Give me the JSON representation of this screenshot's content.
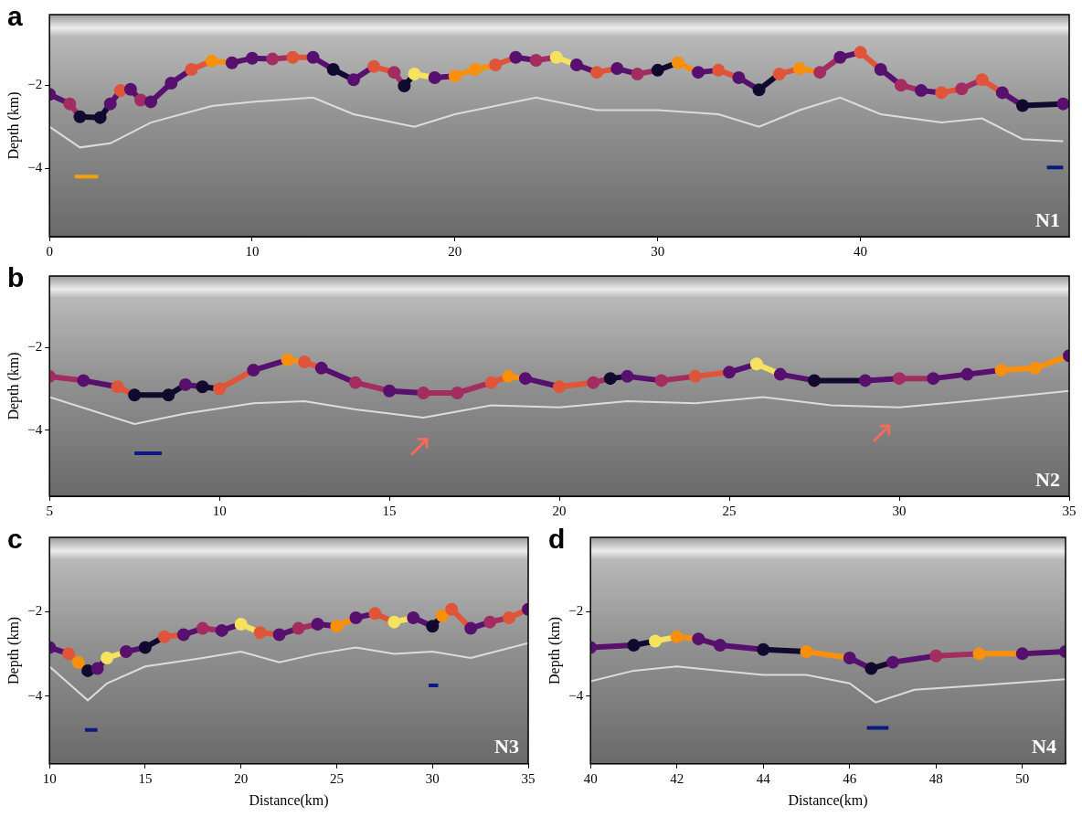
{
  "chart_data": [
    {
      "type": "line",
      "panel_label": "a",
      "title": "N1",
      "y_label": "Depth (km)",
      "xlim": [
        0,
        50.3
      ],
      "xticks": [
        0,
        10,
        20,
        30,
        40
      ],
      "ylim": [
        -5.65,
        -0.3
      ],
      "yticks": [
        {
          "value": -4,
          "label": "−4"
        },
        {
          "value": -2,
          "label": "−2"
        }
      ],
      "grid": false,
      "series": [
        {
          "type": "line",
          "marker": "circle",
          "line_style": "solid",
          "x": [
            0,
            1,
            1.5,
            2.5,
            3,
            3.5,
            4,
            4.5,
            5,
            6,
            7,
            8,
            9,
            10,
            11,
            12,
            13,
            14,
            15,
            16,
            17,
            17.5,
            18,
            19,
            20,
            21,
            22,
            23,
            24,
            25,
            26,
            27,
            28,
            29,
            30,
            31,
            32,
            33,
            34,
            35,
            36,
            37,
            38,
            39,
            40,
            41,
            42,
            43,
            44,
            45,
            46,
            47,
            48,
            50
          ],
          "values": [
            -2.22,
            -2.45,
            -2.76,
            -2.78,
            -2.45,
            -2.13,
            -2.1,
            -2.36,
            -2.4,
            -1.95,
            -1.62,
            -1.42,
            -1.46,
            -1.35,
            -1.37,
            -1.33,
            -1.33,
            -1.62,
            -1.87,
            -1.55,
            -1.69,
            -2.02,
            -1.73,
            -1.82,
            -1.78,
            -1.62,
            -1.51,
            -1.33,
            -1.4,
            -1.33,
            -1.51,
            -1.69,
            -1.6,
            -1.73,
            -1.64,
            -1.46,
            -1.69,
            -1.64,
            -1.82,
            -2.11,
            -1.73,
            -1.6,
            -1.69,
            -1.33,
            -1.21,
            -1.62,
            -2.0,
            -2.13,
            -2.18,
            -2.09,
            -1.87,
            -2.18,
            -2.49,
            -2.45
          ],
          "colors": [
            "#57106e",
            "#a32c61",
            "#120a2e",
            "#120a2e",
            "#57106e",
            "#e0543a",
            "#57106e",
            "#a32c61",
            "#57106e",
            "#57106e",
            "#e0543a",
            "#f8900c",
            "#57106e",
            "#57106e",
            "#a32c61",
            "#e0543a",
            "#57106e",
            "#120a2e",
            "#57106e",
            "#e0543a",
            "#a32c61",
            "#120a2e",
            "#f5e25e",
            "#57106e",
            "#f8900c",
            "#f8900c",
            "#e0543a",
            "#57106e",
            "#a32c61",
            "#f5e25e",
            "#57106e",
            "#e0543a",
            "#57106e",
            "#a32c61",
            "#120a2e",
            "#f8900c",
            "#57106e",
            "#e0543a",
            "#57106e",
            "#120a2e",
            "#e0543a",
            "#f8900c",
            "#a32c61",
            "#57106e",
            "#e0543a",
            "#57106e",
            "#a32c61",
            "#57106e",
            "#e0543a",
            "#a32c61",
            "#e0543a",
            "#57106e",
            "#120a2e",
            "#57106e"
          ]
        },
        {
          "type": "line",
          "marker": "none",
          "line_style": "solid",
          "color": "#dcdcdc",
          "x": [
            0,
            1.5,
            3,
            5,
            8,
            10,
            13,
            15,
            18,
            20,
            24,
            27,
            30,
            33,
            35,
            37,
            39,
            41,
            44,
            46,
            48,
            50
          ],
          "values": [
            -3.0,
            -3.5,
            -3.4,
            -2.9,
            -2.5,
            -2.4,
            -2.3,
            -2.7,
            -3.0,
            -2.7,
            -2.3,
            -2.6,
            -2.6,
            -2.7,
            -3.0,
            -2.6,
            -2.3,
            -2.7,
            -2.9,
            -2.8,
            -3.3,
            -3.35
          ]
        }
      ],
      "segments": [
        {
          "x": [
            1.25,
            2.4
          ],
          "y": -4.2,
          "color": "#f8a00a"
        },
        {
          "x": [
            49.2,
            50.0
          ],
          "y": -3.98,
          "color": "#0b1a80"
        }
      ],
      "arrows": []
    },
    {
      "type": "line",
      "panel_label": "b",
      "title": "N2",
      "y_label": "Depth (km)",
      "xlim": [
        5,
        35
      ],
      "xticks": [
        5,
        10,
        15,
        20,
        25,
        30,
        35
      ],
      "ylim": [
        -5.6,
        -0.27
      ],
      "yticks": [
        {
          "value": -4,
          "label": "−4"
        },
        {
          "value": -2,
          "label": "−2"
        }
      ],
      "grid": false,
      "series": [
        {
          "type": "line",
          "marker": "circle",
          "line_style": "solid",
          "x": [
            5,
            6,
            7,
            7.5,
            8.5,
            9,
            9.5,
            10,
            11,
            12,
            12.5,
            13,
            14,
            15,
            16,
            17,
            18,
            18.5,
            19,
            20,
            21,
            21.5,
            22,
            23,
            24,
            25,
            25.8,
            26.5,
            27.5,
            29,
            30,
            31,
            32,
            33,
            34,
            35
          ],
          "values": [
            -2.7,
            -2.8,
            -2.95,
            -3.15,
            -3.15,
            -2.9,
            -2.95,
            -3.0,
            -2.55,
            -2.3,
            -2.35,
            -2.5,
            -2.85,
            -3.05,
            -3.1,
            -3.1,
            -2.85,
            -2.7,
            -2.75,
            -2.95,
            -2.85,
            -2.75,
            -2.7,
            -2.8,
            -2.7,
            -2.6,
            -2.4,
            -2.65,
            -2.8,
            -2.8,
            -2.75,
            -2.75,
            -2.65,
            -2.55,
            -2.5,
            -2.2
          ],
          "colors": [
            "#a32c61",
            "#57106e",
            "#e0543a",
            "#120a2e",
            "#120a2e",
            "#57106e",
            "#120a2e",
            "#e0543a",
            "#57106e",
            "#f8900c",
            "#e0543a",
            "#57106e",
            "#a32c61",
            "#57106e",
            "#a32c61",
            "#a32c61",
            "#e0543a",
            "#f8900c",
            "#57106e",
            "#e0543a",
            "#a32c61",
            "#120a2e",
            "#57106e",
            "#a32c61",
            "#e0543a",
            "#57106e",
            "#f5e25e",
            "#57106e",
            "#120a2e",
            "#57106e",
            "#a32c61",
            "#57106e",
            "#57106e",
            "#f8900c",
            "#f8900c",
            "#57106e"
          ]
        },
        {
          "type": "line",
          "marker": "none",
          "line_style": "solid",
          "color": "#dcdcdc",
          "x": [
            5,
            7.5,
            9,
            11,
            12.5,
            14,
            16,
            18,
            20,
            22,
            24,
            26,
            28,
            30,
            32,
            35
          ],
          "values": [
            -3.2,
            -3.85,
            -3.6,
            -3.35,
            -3.3,
            -3.5,
            -3.7,
            -3.4,
            -3.45,
            -3.3,
            -3.35,
            -3.2,
            -3.4,
            -3.45,
            -3.3,
            -3.05
          ]
        }
      ],
      "segments": [
        {
          "x": [
            7.5,
            8.3
          ],
          "y": -4.56,
          "color": "#0b1a80"
        }
      ],
      "arrows": [
        {
          "x": 16.1,
          "y": -4.22,
          "color": "#f26b5b"
        },
        {
          "x": 29.7,
          "y": -3.9,
          "color": "#f26b5b"
        }
      ]
    },
    {
      "type": "line",
      "panel_label": "c",
      "title": "N3",
      "y_label": "Depth (km)",
      "x_label": "Distance(km)",
      "xlim": [
        10,
        35
      ],
      "xticks": [
        10,
        15,
        20,
        25,
        30,
        35
      ],
      "ylim": [
        -5.6,
        -0.25
      ],
      "yticks": [
        {
          "value": -4,
          "label": "−4"
        },
        {
          "value": -2,
          "label": "−2"
        }
      ],
      "grid": false,
      "series": [
        {
          "type": "line",
          "marker": "circle",
          "line_style": "solid",
          "x": [
            10,
            11,
            11.5,
            12,
            12.5,
            13,
            14,
            15,
            16,
            17,
            18,
            19,
            20,
            21,
            22,
            23,
            24,
            25,
            26,
            27,
            28,
            29,
            30,
            30.5,
            31,
            32,
            33,
            34,
            35
          ],
          "values": [
            -2.85,
            -3.0,
            -3.2,
            -3.4,
            -3.35,
            -3.1,
            -2.95,
            -2.85,
            -2.6,
            -2.55,
            -2.4,
            -2.45,
            -2.3,
            -2.5,
            -2.55,
            -2.4,
            -2.3,
            -2.35,
            -2.15,
            -2.05,
            -2.25,
            -2.15,
            -2.35,
            -2.1,
            -1.95,
            -2.4,
            -2.25,
            -2.15,
            -1.95
          ],
          "colors": [
            "#57106e",
            "#e0543a",
            "#f8900c",
            "#120a2e",
            "#57106e",
            "#f5e25e",
            "#57106e",
            "#120a2e",
            "#e0543a",
            "#57106e",
            "#a32c61",
            "#57106e",
            "#f5e25e",
            "#e0543a",
            "#57106e",
            "#a32c61",
            "#57106e",
            "#f8900c",
            "#57106e",
            "#e0543a",
            "#f5e25e",
            "#57106e",
            "#120a2e",
            "#f8900c",
            "#e0543a",
            "#57106e",
            "#a32c61",
            "#e0543a",
            "#57106e"
          ]
        },
        {
          "type": "line",
          "marker": "none",
          "line_style": "solid",
          "color": "#dcdcdc",
          "x": [
            10,
            12,
            13,
            15,
            18,
            20,
            22,
            24,
            26,
            28,
            30,
            32,
            35
          ],
          "values": [
            -3.3,
            -4.1,
            -3.7,
            -3.3,
            -3.1,
            -2.95,
            -3.2,
            -3.0,
            -2.85,
            -3.0,
            -2.95,
            -3.1,
            -2.75
          ]
        }
      ],
      "segments": [
        {
          "x": [
            11.85,
            12.5
          ],
          "y": -4.8,
          "color": "#0b1a80"
        },
        {
          "x": [
            29.8,
            30.3
          ],
          "y": -3.75,
          "color": "#0b1a80"
        }
      ],
      "arrows": []
    },
    {
      "type": "line",
      "panel_label": "d",
      "title": "N4",
      "y_label": "Depth (km)",
      "x_label": "Distance(km)",
      "xlim": [
        40,
        51
      ],
      "xticks": [
        40,
        42,
        44,
        46,
        48,
        50
      ],
      "ylim": [
        -5.6,
        -0.25
      ],
      "yticks": [
        {
          "value": -4,
          "label": "−4"
        },
        {
          "value": -2,
          "label": "−2"
        }
      ],
      "grid": false,
      "series": [
        {
          "type": "line",
          "marker": "circle",
          "line_style": "solid",
          "x": [
            40,
            41,
            41.5,
            42,
            42.5,
            43,
            44,
            45,
            46,
            46.5,
            47,
            48,
            49,
            50,
            51
          ],
          "values": [
            -2.85,
            -2.8,
            -2.7,
            -2.6,
            -2.65,
            -2.8,
            -2.9,
            -2.95,
            -3.1,
            -3.35,
            -3.2,
            -3.05,
            -3.0,
            -3.0,
            -2.95
          ],
          "colors": [
            "#57106e",
            "#120a2e",
            "#f5e25e",
            "#f8900c",
            "#57106e",
            "#57106e",
            "#120a2e",
            "#f8900c",
            "#57106e",
            "#120a2e",
            "#57106e",
            "#a32c61",
            "#f8900c",
            "#57106e",
            "#57106e"
          ]
        },
        {
          "type": "line",
          "marker": "none",
          "line_style": "solid",
          "color": "#dcdcdc",
          "x": [
            40,
            41,
            42,
            43,
            44,
            45,
            46,
            46.6,
            47.5,
            49,
            51
          ],
          "values": [
            -3.65,
            -3.4,
            -3.3,
            -3.4,
            -3.5,
            -3.5,
            -3.7,
            -4.15,
            -3.85,
            -3.75,
            -3.6
          ]
        }
      ],
      "segments": [
        {
          "x": [
            46.4,
            46.9
          ],
          "y": -4.75,
          "color": "#0b1a80"
        }
      ],
      "arrows": []
    }
  ]
}
